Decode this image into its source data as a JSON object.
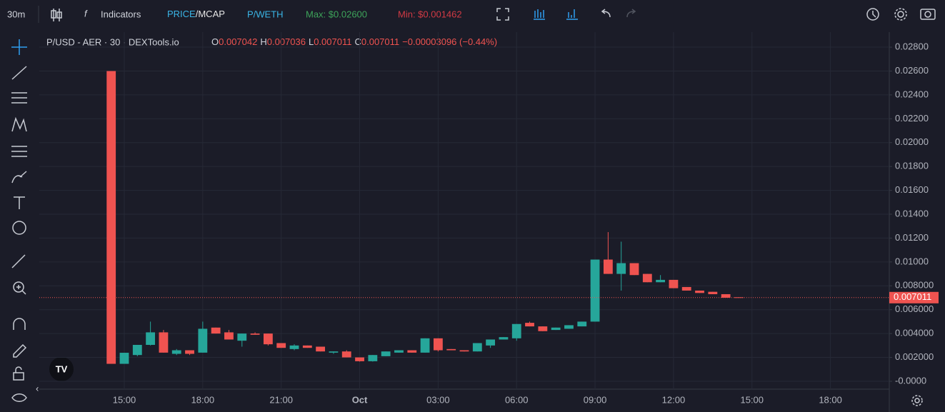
{
  "toolbar": {
    "interval": "30m",
    "indicators": "Indicators",
    "price": "PRICE",
    "mcap": "/MCAP",
    "pair": "P/WETH",
    "max": "Max: $0.02600",
    "min": "Min: $0.001462"
  },
  "chart_data": {
    "type": "candlestick",
    "title": "P/USD - AER · 30 · DEXTools.io",
    "ohlc_labels": [
      "O",
      "H",
      "L",
      "C"
    ],
    "change_label": "−0.00003096 (−0.44%)",
    "categories": [
      null,
      null,
      null,
      null,
      null,
      null,
      "15:00",
      null,
      null,
      null,
      null,
      null,
      "18:00",
      null,
      null,
      null,
      null,
      null,
      "21:00",
      null,
      null,
      null,
      null,
      null,
      "Oct",
      null,
      null,
      null,
      null,
      null,
      "03:00",
      null,
      null,
      null,
      null,
      null,
      "06:00",
      null,
      null,
      null,
      null,
      null,
      "09:00",
      null,
      null,
      null,
      null,
      null,
      "12:00",
      null,
      null,
      null,
      null,
      null,
      "15:00",
      null,
      null,
      null,
      null,
      null,
      "18:00",
      null,
      null,
      null,
      null
    ],
    "open": [
      null,
      null,
      null,
      null,
      null,
      0.026,
      0.001462,
      0.0022,
      0.00305,
      0.0041,
      0.0023,
      0.0026,
      0.0024,
      0.0045,
      0.0041,
      0.0034,
      0.004,
      0.004,
      0.0032,
      0.0027,
      0.003,
      0.0029,
      0.0024,
      0.0025,
      0.002,
      0.00168,
      0.0021,
      0.0024,
      0.0026,
      0.0024,
      0.0036,
      0.0027,
      0.0026,
      0.0025,
      0.003,
      0.0035,
      0.0036,
      0.0049,
      0.0046,
      0.0043,
      0.0044,
      0.0046,
      0.005,
      0.0102,
      0.009,
      0.0099,
      0.009,
      0.0083,
      0.0085,
      0.0079,
      0.0076,
      0.0075,
      0.0073,
      0.007042,
      null,
      null,
      null,
      null,
      null,
      null,
      null,
      null,
      null,
      null,
      null
    ],
    "high": [
      null,
      null,
      null,
      null,
      null,
      0.026,
      0.00239,
      0.00305,
      0.005,
      0.0043,
      0.0027,
      0.0026,
      0.005,
      0.0045,
      0.0043,
      0.004,
      0.0041,
      0.004,
      0.0032,
      0.0031,
      0.003,
      0.0029,
      0.0025,
      0.0026,
      0.002,
      0.0022,
      0.0025,
      0.0026,
      0.0026,
      0.0036,
      0.0036,
      0.0027,
      0.0026,
      0.0032,
      0.0035,
      0.0037,
      0.0048,
      0.005,
      0.0046,
      0.0045,
      0.0047,
      0.005,
      0.0102,
      0.0125,
      0.0117,
      0.0099,
      0.009,
      0.0089,
      0.0085,
      0.0079,
      0.0076,
      0.0075,
      0.0073,
      0.007036,
      null,
      null,
      null,
      null,
      null,
      null,
      null,
      null,
      null,
      null,
      null
    ],
    "low": [
      null,
      null,
      null,
      null,
      null,
      0.001462,
      0.001462,
      0.0021,
      0.003,
      0.0024,
      0.0022,
      0.0022,
      0.0024,
      0.004,
      0.0035,
      0.0029,
      0.0039,
      0.003,
      0.0028,
      0.0026,
      0.0028,
      0.0025,
      0.0023,
      0.002,
      0.00165,
      0.00165,
      0.0021,
      0.0024,
      0.0024,
      0.0024,
      0.0025,
      0.0026,
      0.0025,
      0.0025,
      0.0028,
      0.0035,
      0.0034,
      0.0046,
      0.0042,
      0.0043,
      0.0044,
      0.0046,
      0.005,
      0.009,
      0.0076,
      0.0089,
      0.0083,
      0.0083,
      0.0078,
      0.0076,
      0.0074,
      0.0073,
      0.007,
      0.007011,
      null,
      null,
      null,
      null,
      null,
      null,
      null,
      null,
      null,
      null,
      null
    ],
    "close": [
      null,
      null,
      null,
      null,
      null,
      0.001462,
      0.00239,
      0.00305,
      0.0041,
      0.0024,
      0.0026,
      0.0023,
      0.0044,
      0.004,
      0.0035,
      0.004,
      0.0039,
      0.0031,
      0.0028,
      0.003,
      0.0028,
      0.0025,
      0.0025,
      0.002,
      0.00168,
      0.0022,
      0.0025,
      0.0026,
      0.0024,
      0.0036,
      0.0026,
      0.0026,
      0.0025,
      0.0032,
      0.0035,
      0.0037,
      0.0048,
      0.0046,
      0.0042,
      0.0045,
      0.0047,
      0.005,
      0.0102,
      0.009,
      0.0099,
      0.0089,
      0.0083,
      0.0085,
      0.0078,
      0.0076,
      0.0074,
      0.0073,
      0.007,
      0.007011,
      null,
      null,
      null,
      null,
      null,
      null,
      null,
      null,
      null,
      null,
      null
    ],
    "up_color": "#26a69a",
    "down_color": "#ef5350",
    "ylim": [
      -0.00066,
      0.02926
    ],
    "yticks": [
      {
        "value": 0,
        "label": "-0.0000"
      },
      {
        "value": 0.002,
        "label": "0.002000"
      },
      {
        "value": 0.004,
        "label": "0.004000"
      },
      {
        "value": 0.006,
        "label": "0.006000"
      },
      {
        "value": 0.008,
        "label": "0.008000"
      },
      {
        "value": 0.01,
        "label": "0.01000"
      },
      {
        "value": 0.012,
        "label": "0.01200"
      },
      {
        "value": 0.014,
        "label": "0.01400"
      },
      {
        "value": 0.016,
        "label": "0.01600"
      },
      {
        "value": 0.018,
        "label": "0.01800"
      },
      {
        "value": 0.02,
        "label": "0.02000"
      },
      {
        "value": 0.022,
        "label": "0.02200"
      },
      {
        "value": 0.024,
        "label": "0.02400"
      },
      {
        "value": 0.026,
        "label": "0.02600"
      },
      {
        "value": 0.028,
        "label": "0.02800"
      }
    ],
    "grid": true
  }
}
